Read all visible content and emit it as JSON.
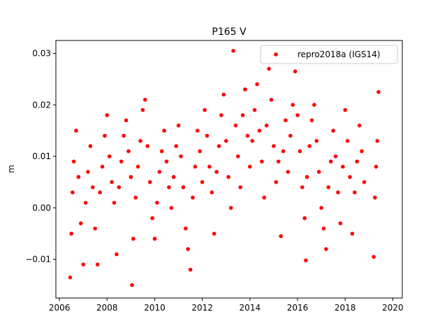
{
  "chart_data": {
    "type": "scatter",
    "title": "P165 V",
    "xlabel": "",
    "ylabel": "m",
    "xlim": [
      2005.85,
      2020.4
    ],
    "ylim": [
      -0.0175,
      0.0325
    ],
    "xticks": [
      2006,
      2008,
      2010,
      2012,
      2014,
      2016,
      2018,
      2020
    ],
    "xtick_labels": [
      "2006",
      "2008",
      "2010",
      "2012",
      "2014",
      "2016",
      "2018",
      "2020"
    ],
    "yticks": [
      -0.01,
      0.0,
      0.01,
      0.02,
      0.03
    ],
    "ytick_labels": [
      "−0.01",
      "0.00",
      "0.01",
      "0.02",
      "0.03"
    ],
    "legend_position": "top-right",
    "grid": false,
    "series": [
      {
        "name": "repro2018a (IGS14)",
        "color": "#ff0000",
        "points": [
          [
            2006.45,
            -0.0135
          ],
          [
            2006.5,
            -0.005
          ],
          [
            2006.55,
            0.003
          ],
          [
            2006.6,
            0.009
          ],
          [
            2006.7,
            0.015
          ],
          [
            2006.8,
            0.006
          ],
          [
            2006.9,
            -0.003
          ],
          [
            2007.0,
            -0.011
          ],
          [
            2007.1,
            0.001
          ],
          [
            2007.2,
            0.007
          ],
          [
            2007.3,
            0.012
          ],
          [
            2007.4,
            0.004
          ],
          [
            2007.5,
            -0.004
          ],
          [
            2007.6,
            -0.011
          ],
          [
            2007.7,
            0.003
          ],
          [
            2007.8,
            0.008
          ],
          [
            2007.9,
            0.014
          ],
          [
            2008.0,
            0.018
          ],
          [
            2008.1,
            0.01
          ],
          [
            2008.2,
            0.005
          ],
          [
            2008.3,
            0.001
          ],
          [
            2008.4,
            -0.009
          ],
          [
            2008.5,
            0.004
          ],
          [
            2008.6,
            0.009
          ],
          [
            2008.7,
            0.014
          ],
          [
            2008.8,
            0.017
          ],
          [
            2008.9,
            0.011
          ],
          [
            2009.0,
            0.006
          ],
          [
            2009.05,
            -0.015
          ],
          [
            2009.1,
            -0.006
          ],
          [
            2009.2,
            0.002
          ],
          [
            2009.3,
            0.008
          ],
          [
            2009.4,
            0.013
          ],
          [
            2009.5,
            0.019
          ],
          [
            2009.6,
            0.021
          ],
          [
            2009.7,
            0.012
          ],
          [
            2009.8,
            0.005
          ],
          [
            2009.9,
            -0.002
          ],
          [
            2010.0,
            -0.006
          ],
          [
            2010.1,
            0.001
          ],
          [
            2010.2,
            0.007
          ],
          [
            2010.3,
            0.011
          ],
          [
            2010.4,
            0.015
          ],
          [
            2010.5,
            0.009
          ],
          [
            2010.6,
            0.004
          ],
          [
            2010.7,
            0.0
          ],
          [
            2010.8,
            0.006
          ],
          [
            2010.9,
            0.012
          ],
          [
            2011.0,
            0.016
          ],
          [
            2011.1,
            0.01
          ],
          [
            2011.2,
            0.004
          ],
          [
            2011.3,
            -0.004
          ],
          [
            2011.4,
            -0.008
          ],
          [
            2011.5,
            -0.012
          ],
          [
            2011.6,
            0.002
          ],
          [
            2011.7,
            0.008
          ],
          [
            2011.8,
            0.015
          ],
          [
            2011.9,
            0.011
          ],
          [
            2012.0,
            0.005
          ],
          [
            2012.1,
            0.019
          ],
          [
            2012.2,
            0.014
          ],
          [
            2012.3,
            0.008
          ],
          [
            2012.4,
            0.003
          ],
          [
            2012.5,
            -0.005
          ],
          [
            2012.6,
            0.007
          ],
          [
            2012.7,
            0.012
          ],
          [
            2012.8,
            0.018
          ],
          [
            2012.9,
            0.022
          ],
          [
            2013.0,
            0.013
          ],
          [
            2013.1,
            0.006
          ],
          [
            2013.2,
            0.0
          ],
          [
            2013.3,
            0.0305
          ],
          [
            2013.4,
            0.016
          ],
          [
            2013.5,
            0.01
          ],
          [
            2013.6,
            0.004
          ],
          [
            2013.7,
            0.018
          ],
          [
            2013.8,
            0.023
          ],
          [
            2013.9,
            0.014
          ],
          [
            2014.0,
            0.008
          ],
          [
            2014.1,
            0.013
          ],
          [
            2014.2,
            0.019
          ],
          [
            2014.3,
            0.024
          ],
          [
            2014.4,
            0.015
          ],
          [
            2014.5,
            0.009
          ],
          [
            2014.6,
            0.002
          ],
          [
            2014.7,
            0.016
          ],
          [
            2014.8,
            0.027
          ],
          [
            2014.9,
            0.021
          ],
          [
            2015.0,
            0.012
          ],
          [
            2015.1,
            0.005
          ],
          [
            2015.2,
            0.009
          ],
          [
            2015.3,
            -0.0055
          ],
          [
            2015.4,
            0.011
          ],
          [
            2015.5,
            0.017
          ],
          [
            2015.6,
            0.007
          ],
          [
            2015.7,
            0.014
          ],
          [
            2015.8,
            0.02
          ],
          [
            2015.9,
            0.0265
          ],
          [
            2016.0,
            0.018
          ],
          [
            2016.1,
            0.011
          ],
          [
            2016.2,
            0.004
          ],
          [
            2016.3,
            -0.002
          ],
          [
            2016.35,
            -0.0102
          ],
          [
            2016.4,
            0.006
          ],
          [
            2016.5,
            0.012
          ],
          [
            2016.6,
            0.017
          ],
          [
            2016.7,
            0.02
          ],
          [
            2016.8,
            0.013
          ],
          [
            2016.9,
            0.007
          ],
          [
            2017.0,
            0.0
          ],
          [
            2017.1,
            -0.004
          ],
          [
            2017.2,
            -0.008
          ],
          [
            2017.3,
            0.004
          ],
          [
            2017.4,
            0.009
          ],
          [
            2017.5,
            0.015
          ],
          [
            2017.6,
            0.01
          ],
          [
            2017.7,
            0.003
          ],
          [
            2017.8,
            -0.003
          ],
          [
            2017.9,
            0.008
          ],
          [
            2018.0,
            0.019
          ],
          [
            2018.1,
            0.013
          ],
          [
            2018.2,
            0.006
          ],
          [
            2018.3,
            -0.005
          ],
          [
            2018.4,
            0.003
          ],
          [
            2018.5,
            0.009
          ],
          [
            2018.6,
            0.016
          ],
          [
            2018.7,
            0.011
          ],
          [
            2018.8,
            0.005
          ],
          [
            2019.2,
            -0.0095
          ],
          [
            2019.25,
            0.002
          ],
          [
            2019.3,
            0.008
          ],
          [
            2019.35,
            0.013
          ],
          [
            2019.4,
            0.0225
          ]
        ]
      }
    ]
  }
}
